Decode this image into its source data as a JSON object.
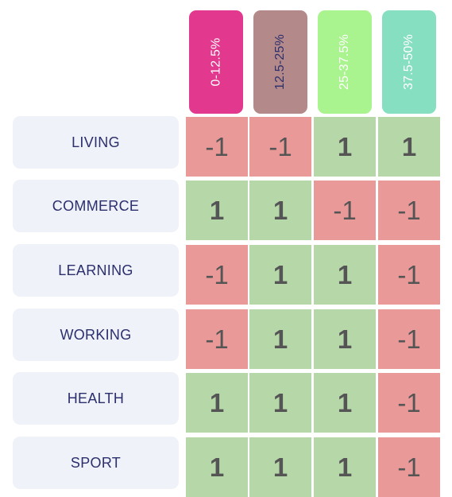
{
  "columns": [
    {
      "label": "0-12.5%",
      "color": "#e2388d",
      "text_color": "#ffffff"
    },
    {
      "label": "12.5-25%",
      "color": "#b48989",
      "text_color": "#2c2f6e"
    },
    {
      "label": "25-37.5%",
      "color": "#a9f48e",
      "text_color": "#ffffff"
    },
    {
      "label": "37.5-50%",
      "color": "#87dfc2",
      "text_color": "#ffffff"
    }
  ],
  "rows": [
    {
      "label": "LIVING",
      "values": [
        "-1",
        "-1",
        "1",
        "1"
      ]
    },
    {
      "label": "COMMERCE",
      "values": [
        "1",
        "1",
        "-1",
        "-1"
      ]
    },
    {
      "label": "LEARNING",
      "values": [
        "-1",
        "1",
        "1",
        "-1"
      ]
    },
    {
      "label": "WORKING",
      "values": [
        "-1",
        "1",
        "1",
        "-1"
      ]
    },
    {
      "label": "HEALTH",
      "values": [
        "1",
        "1",
        "1",
        "-1"
      ]
    },
    {
      "label": "SPORT",
      "values": [
        "1",
        "1",
        "1",
        "-1"
      ]
    }
  ],
  "colors": {
    "positive": "#b6d7a8",
    "negative": "#ea9999"
  }
}
